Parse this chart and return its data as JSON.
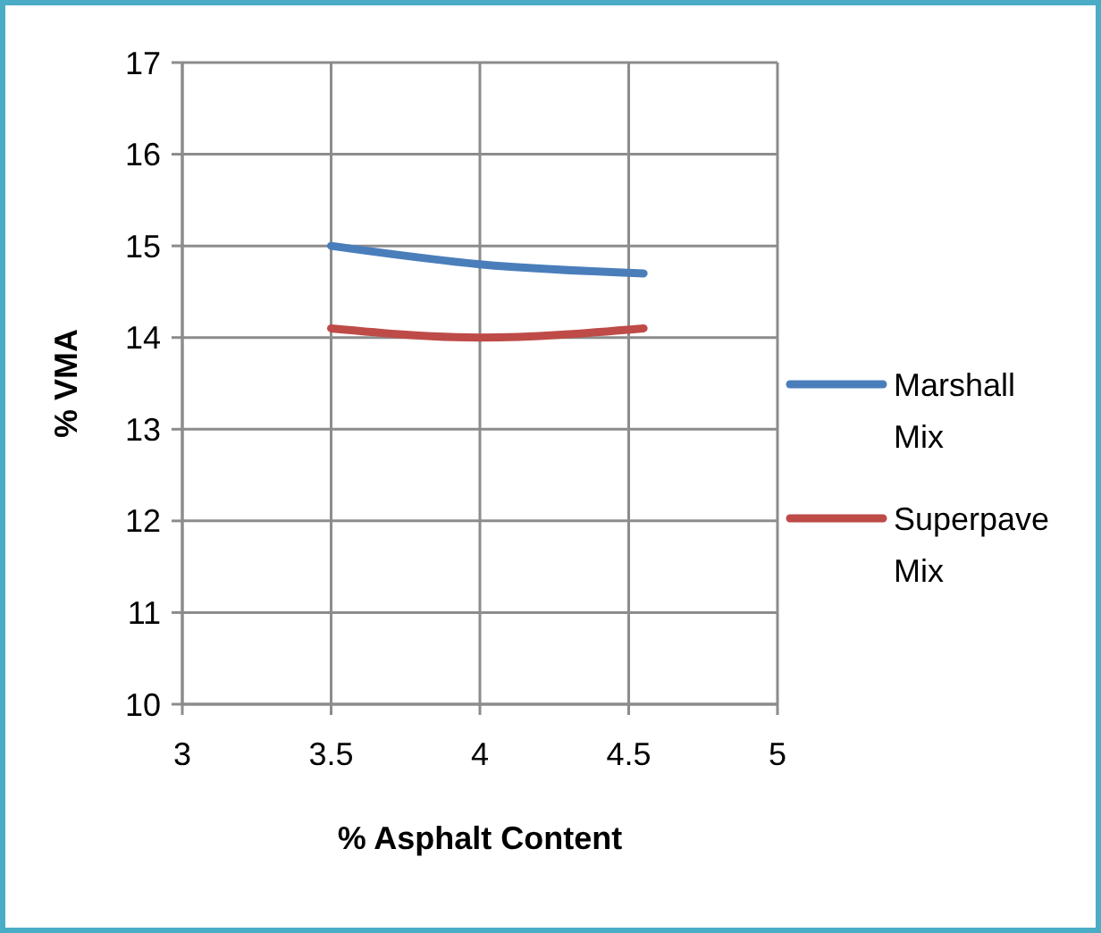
{
  "chart_data": {
    "type": "line",
    "xlabel": "% Asphalt Content",
    "ylabel": "% VMA",
    "x": [
      3.5,
      4,
      4.55
    ],
    "series": [
      {
        "name": "Marshall Mix",
        "color": "#4a7ebb",
        "values": [
          15.0,
          14.8,
          14.7
        ]
      },
      {
        "name": "Superpave Mix",
        "color": "#be4b48",
        "values": [
          14.1,
          14.0,
          14.1
        ]
      }
    ],
    "xlim": [
      3,
      5
    ],
    "xticks": [
      3,
      3.5,
      4,
      4.5,
      5
    ],
    "ylim": [
      10,
      17
    ],
    "yticks": [
      10,
      11,
      12,
      13,
      14,
      15,
      16,
      17
    ],
    "grid": true,
    "legend": "right",
    "marker": "none",
    "line_style": "solid"
  }
}
